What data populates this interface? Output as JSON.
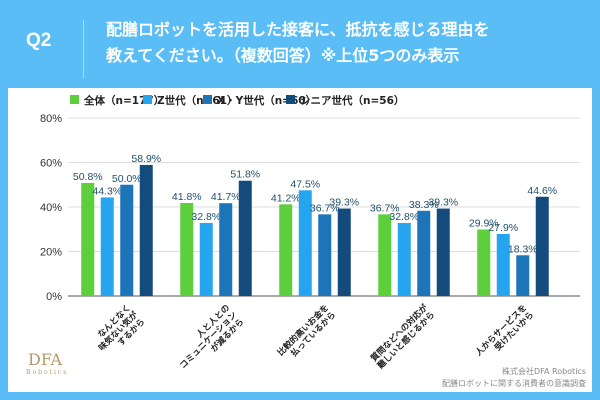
{
  "header": {
    "q_label": "Q2",
    "title_line1": "配膳ロボットを活用した接客に、抵抗を感じる理由を",
    "title_line2": "教えてください。（複数回答）※上位5つのみ表示"
  },
  "footer": {
    "company": "株式会社DFA Robotics",
    "survey": "配膳ロボットに関する消費者の意識調査",
    "logo_text": "DFA",
    "logo_sub": "Robotics"
  },
  "chart_data": {
    "type": "bar",
    "ylim": [
      0,
      80
    ],
    "yticks": [
      "0%",
      "20%",
      "40%",
      "60%",
      "80%"
    ],
    "grid": true,
    "legend_position": "top",
    "categories": [
      "なんとなく味気ない気がするから",
      "人と人とのコミュニケーションが減るから",
      "比較的高いお金を払っているから",
      "質問などへの対応が難しいと感じるから",
      "人からサービスを受けたいから"
    ],
    "category_lines": [
      [
        "なんとなく",
        "味気ない気が",
        "するから"
      ],
      [
        "人と人との",
        "コミュニケーション",
        "が減るから"
      ],
      [
        "比較的高いお金を",
        "払っているから"
      ],
      [
        "質問などへの対応が",
        "難しいと感じるから"
      ],
      [
        "人からサービスを",
        "受けたいから"
      ]
    ],
    "series": [
      {
        "name": "全体（n=177）",
        "color": "#5dce3c",
        "values": [
          50.8,
          41.8,
          41.2,
          36.7,
          29.9
        ]
      },
      {
        "name": "Z世代（n=61）",
        "color": "#25a4ef",
        "values": [
          44.3,
          32.8,
          47.5,
          32.8,
          27.9
        ]
      },
      {
        "name": "X・Y世代（n=60）",
        "color": "#1c74b9",
        "values": [
          50.0,
          41.7,
          36.7,
          38.3,
          18.3
        ]
      },
      {
        "name": "シニア世代（n=56）",
        "color": "#124b7c",
        "values": [
          58.9,
          51.8,
          39.3,
          39.3,
          44.6
        ]
      }
    ],
    "label_color": "#1f4f6c"
  }
}
